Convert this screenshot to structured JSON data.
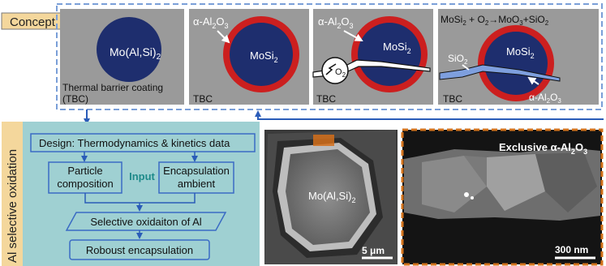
{
  "concept_label": "Concept",
  "side_label": "Al selective oxidation",
  "panels": [
    {
      "core": "Mo(Al,Si)",
      "core_sub": "2",
      "caption_line1": "Thermal barrier coating",
      "caption_line2": "(TBC)"
    },
    {
      "shell": "α-Al",
      "shell_sub1": "2",
      "shell_mid": "O",
      "shell_sub2": "3",
      "core": "MoSi",
      "core_sub": "2",
      "caption": "TBC"
    },
    {
      "shell": "α-Al",
      "shell_sub1": "2",
      "shell_mid": "O",
      "shell_sub2": "3",
      "core": "MoSi",
      "core_sub": "2",
      "gas": "O",
      "gas_sub": "2",
      "caption": "TBC"
    },
    {
      "equation": {
        "a": "MoSi",
        "a_sub": "2",
        "b": " + O",
        "b_sub": "2",
        "arrow": "→",
        "c": "MoO",
        "c_sub": "3",
        "d": "+SiO",
        "d_sub": "2"
      },
      "layer": "SiO",
      "layer_sub": "2",
      "core": "MoSi",
      "core_sub": "2",
      "shell": "α-Al",
      "shell_sub1": "2",
      "shell_mid": "O",
      "shell_sub2": "3",
      "caption": "TBC"
    }
  ],
  "flow": {
    "design": "Design: Thermodynamics & kinetics data",
    "particle_line1": "Particle",
    "particle_line2": "composition",
    "input": "Input",
    "encap_line1": "Encapsulation",
    "encap_line2": "ambient",
    "selective": "Selective oxidaiton of Al",
    "robust": "Roboust encapsulation"
  },
  "sem": {
    "label": "Mo(Al,Si)",
    "label_sub": "2",
    "scale": "5 μm"
  },
  "tem": {
    "title": "Exclusive α-Al",
    "title_sub1": "2",
    "title_mid": "O",
    "title_sub2": "3",
    "scale": "300 nm"
  },
  "colors": {
    "teal_bg": "#9fd0d2",
    "concept_tab": "#f4d79c",
    "dashed_blue": "#7a9fd8",
    "gray_panel": "#9a9a9a",
    "core_navy": "#1e2e6e",
    "shell_red": "#cc1f1f",
    "box_blue": "#3a6bc4",
    "input_teal": "#1e8a8a",
    "tem_border": "#d4731c"
  }
}
